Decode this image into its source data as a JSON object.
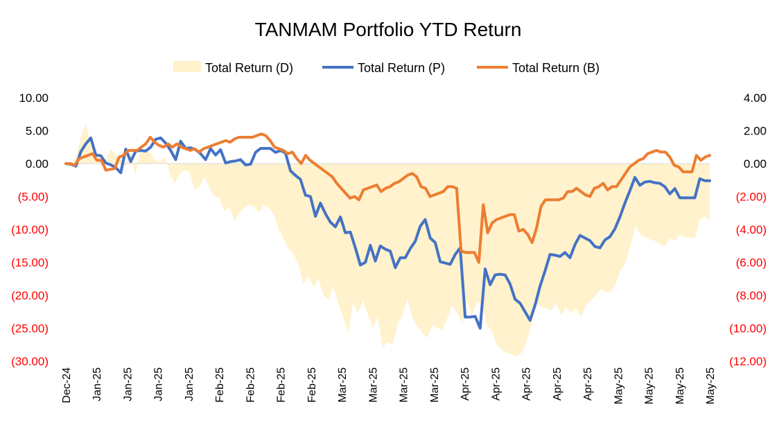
{
  "chart_data": {
    "type": "line",
    "title": "TANMAM Portfolio YTD Return",
    "legend_position": "top",
    "grid": false,
    "x_tick_labels": [
      "Dec-24",
      "Jan-25",
      "Jan-25",
      "Jan-25",
      "Jan-25",
      "Feb-25",
      "Feb-25",
      "Feb-25",
      "Feb-25",
      "Mar-25",
      "Mar-25",
      "Mar-25",
      "Mar-25",
      "Apr-25",
      "Apr-25",
      "Apr-25",
      "Apr-25",
      "Apr-25",
      "May-25",
      "May-25",
      "May-25",
      "May-25"
    ],
    "y_left": {
      "ticks": [
        10,
        5,
        0,
        -5,
        -10,
        -15,
        -20,
        -25,
        -30
      ],
      "tick_labels": [
        "10.00",
        "5.00",
        "0.00",
        "(5.00)",
        "(10.00)",
        "(15.00)",
        "(20.00)",
        "(25.00)",
        "(30.00)"
      ],
      "range": [
        -30,
        10
      ]
    },
    "y_right": {
      "ticks": [
        4,
        2,
        0,
        -2,
        -4,
        -6,
        -8,
        -10,
        -12
      ],
      "tick_labels": [
        "4.00",
        "2.00",
        "0.00",
        "(2.00)",
        "(4.00)",
        "(6.00)",
        "(8.00)",
        "(10.00)",
        "(12.00)"
      ],
      "range": [
        -12,
        4
      ]
    },
    "negative_label_color": "#ff0000",
    "series": [
      {
        "name": "Total Return (D)",
        "kind": "area",
        "axis": "right",
        "color": "#fff2cc",
        "values": [
          0.0,
          -0.1,
          0.3,
          1.6,
          2.4,
          1.3,
          0.6,
          0.3,
          0.2,
          0.9,
          0.5,
          0.3,
          -0.2,
          0.9,
          -0.7,
          0.9,
          0.8,
          0.7,
          0.2,
          0.1,
          0.4,
          -0.6,
          -1.2,
          -0.6,
          -0.4,
          -0.5,
          -1.6,
          -1.4,
          -0.8,
          -1.5,
          -2.0,
          -2.1,
          -2.9,
          -2.6,
          -3.5,
          -3.0,
          -2.7,
          -2.5,
          -2.6,
          -3.0,
          -2.5,
          -2.7,
          -3.1,
          -4.0,
          -4.6,
          -5.2,
          -5.5,
          -6.2,
          -7.3,
          -6.8,
          -7.5,
          -7.0,
          -8.0,
          -8.3,
          -7.5,
          -8.5,
          -9.3,
          -10.3,
          -8.5,
          -9.1,
          -8.3,
          -9.2,
          -10.0,
          -9.3,
          -11.2,
          -10.8,
          -11.0,
          -9.7,
          -9.2,
          -8.2,
          -9.4,
          -9.9,
          -10.3,
          -10.6,
          -9.8,
          -10.0,
          -10.1,
          -9.4,
          -8.6,
          -9.1,
          -9.7,
          -8.3,
          -9.3,
          -8.4,
          -8.5,
          -9.8,
          -10.2,
          -11.0,
          -11.3,
          -11.5,
          -11.6,
          -11.7,
          -11.5,
          -10.8,
          -9.8,
          -8.5,
          -8.7,
          -8.8,
          -8.9,
          -8.5,
          -9.2,
          -8.7,
          -9.1,
          -8.8,
          -9.3,
          -8.6,
          -8.3,
          -8.0,
          -7.6,
          -7.8,
          -7.8,
          -7.3,
          -6.5,
          -6.0,
          -5.0,
          -3.8,
          -4.3,
          -4.5,
          -4.6,
          -4.7,
          -4.9,
          -5.0,
          -4.5,
          -4.7,
          -4.3,
          -4.5,
          -4.5,
          -4.5,
          -3.4,
          -3.2,
          -3.5
        ]
      },
      {
        "name": "Total Return (P)",
        "kind": "line",
        "axis": "left",
        "color": "#4472c4",
        "values": [
          0.0,
          -0.1,
          -0.4,
          1.8,
          3.0,
          3.9,
          1.3,
          1.2,
          0.1,
          -0.2,
          -0.6,
          -1.4,
          2.2,
          0.3,
          1.9,
          2.0,
          1.9,
          2.5,
          3.7,
          3.9,
          3.1,
          2.0,
          0.6,
          3.4,
          2.3,
          2.4,
          2.1,
          1.5,
          0.6,
          2.3,
          1.3,
          2.1,
          0.1,
          0.3,
          0.4,
          0.6,
          -0.2,
          -0.1,
          1.7,
          2.3,
          2.3,
          2.3,
          1.7,
          2.0,
          1.6,
          -1.1,
          -1.8,
          -2.4,
          -4.8,
          -5.0,
          -8.0,
          -6.0,
          -7.6,
          -8.9,
          -9.6,
          -8.1,
          -10.5,
          -10.4,
          -12.8,
          -15.4,
          -15.0,
          -12.4,
          -14.8,
          -12.5,
          -13.0,
          -13.3,
          -15.8,
          -14.3,
          -14.3,
          -12.9,
          -11.8,
          -9.5,
          -8.5,
          -11.3,
          -12.0,
          -14.9,
          -15.1,
          -15.3,
          -13.8,
          -12.8,
          -23.3,
          -23.3,
          -23.2,
          -25.0,
          -16.0,
          -18.4,
          -16.9,
          -16.8,
          -16.9,
          -18.3,
          -20.6,
          -21.2,
          -22.5,
          -23.8,
          -21.5,
          -18.6,
          -16.3,
          -13.8,
          -13.9,
          -14.1,
          -13.5,
          -14.3,
          -12.3,
          -10.9,
          -11.3,
          -11.7,
          -12.6,
          -12.8,
          -11.6,
          -11.1,
          -9.9,
          -8.1,
          -6.0,
          -4.1,
          -2.1,
          -3.3,
          -2.8,
          -2.7,
          -2.9,
          -3.0,
          -3.5,
          -4.6,
          -3.8,
          -5.2,
          -5.2,
          -5.2,
          -5.2,
          -2.3,
          -2.6,
          -2.6
        ]
      },
      {
        "name": "Total Return (B)",
        "kind": "line",
        "axis": "right",
        "color": "#ed7d31",
        "values": [
          0.0,
          0.0,
          -0.1,
          0.3,
          0.4,
          0.5,
          0.6,
          0.2,
          0.2,
          -0.4,
          -0.35,
          -0.3,
          0.4,
          0.5,
          0.8,
          0.8,
          0.8,
          1.0,
          1.2,
          1.6,
          1.3,
          1.1,
          1.0,
          1.2,
          1.0,
          1.2,
          1.0,
          0.9,
          0.8,
          0.9,
          0.7,
          0.9,
          1.0,
          1.1,
          1.2,
          1.3,
          1.4,
          1.3,
          1.5,
          1.6,
          1.6,
          1.6,
          1.6,
          1.7,
          1.8,
          1.7,
          1.4,
          1.0,
          0.9,
          0.8,
          0.6,
          0.7,
          0.3,
          0.0,
          0.5,
          0.2,
          0.0,
          -0.2,
          -0.4,
          -0.6,
          -0.8,
          -1.2,
          -1.5,
          -1.8,
          -2.1,
          -2.0,
          -2.2,
          -1.6,
          -1.5,
          -1.4,
          -1.3,
          -1.7,
          -1.5,
          -1.4,
          -1.2,
          -1.1,
          -0.9,
          -0.7,
          -0.6,
          -0.8,
          -1.4,
          -1.5,
          -2.0,
          -1.9,
          -1.8,
          -1.7,
          -1.4,
          -1.4,
          -1.5,
          -5.3,
          -5.4,
          -5.4,
          -5.4,
          -6.0,
          -2.5,
          -4.2,
          -3.6,
          -3.4,
          -3.3,
          -3.2,
          -3.1,
          -3.1,
          -4.1,
          -4.0,
          -4.3,
          -4.8,
          -3.9,
          -2.6,
          -2.2,
          -2.2,
          -2.2,
          -2.2,
          -2.1,
          -1.7,
          -1.7,
          -1.5,
          -1.7,
          -1.9,
          -2.0,
          -1.5,
          -1.4,
          -1.2,
          -1.6,
          -1.4,
          -1.4,
          -1.0,
          -0.6,
          -0.2,
          0.0,
          0.2,
          0.3,
          0.6,
          0.7,
          0.8,
          0.7,
          0.7,
          0.4,
          -0.1,
          -0.2,
          -0.5,
          -0.5,
          -0.5,
          0.5,
          0.2,
          0.4,
          0.5
        ]
      }
    ]
  }
}
